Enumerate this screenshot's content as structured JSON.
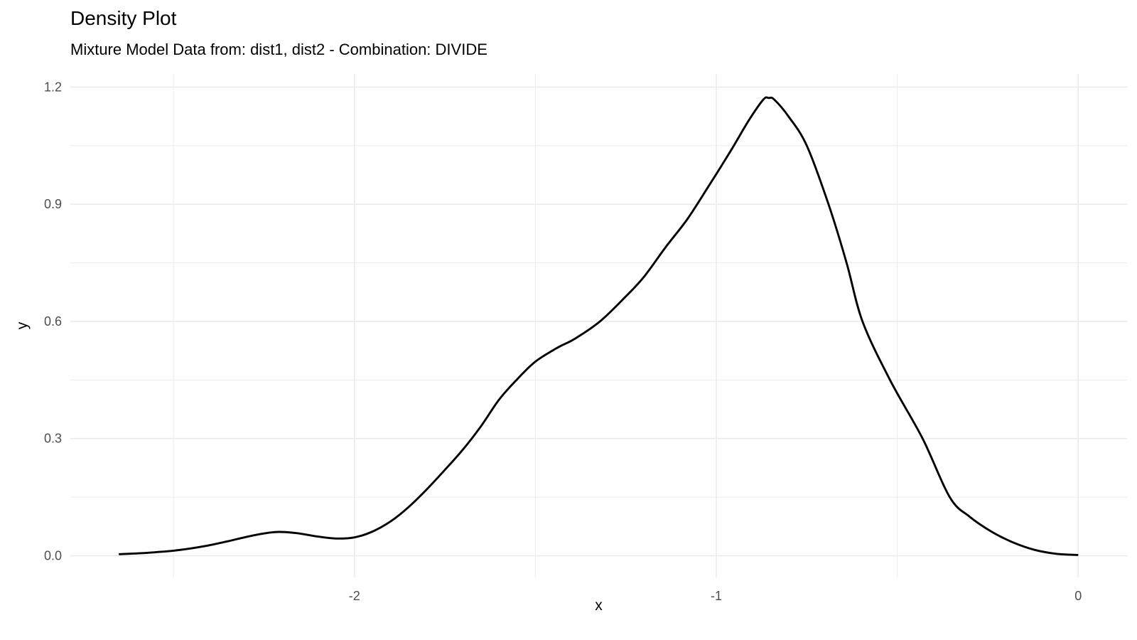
{
  "chart_data": {
    "type": "line",
    "title": "Density Plot",
    "subtitle": "Mixture Model Data from: dist1, dist2 - Combination: DIVIDE",
    "xlabel": "x",
    "ylabel": "y",
    "xlim": [
      -2.785,
      0.135
    ],
    "ylim": [
      -0.0555,
      1.2335
    ],
    "x_ticks_major": [
      -2,
      -1,
      0
    ],
    "x_tick_labels": [
      "-2",
      "-1",
      "0"
    ],
    "x_ticks_minor": [
      -2.5,
      -1.5,
      -0.5
    ],
    "y_ticks_major": [
      0,
      0.3,
      0.6,
      0.9,
      1.2
    ],
    "y_tick_labels": [
      "0.0",
      "0.3",
      "0.6",
      "0.9",
      "1.2"
    ],
    "y_ticks_minor": [
      0.15,
      0.45,
      0.75,
      1.05
    ],
    "grid": true,
    "legend": "none",
    "line_color": "#000000",
    "grid_color": "#ebebeb",
    "axis_text_color": "#4d4d4d",
    "background_color": "#ffffff",
    "series": [
      {
        "x": [
          -2.651,
          -2.6,
          -2.55,
          -2.5,
          -2.45,
          -2.4,
          -2.35,
          -2.3,
          -2.25,
          -2.21,
          -2.16,
          -2.1,
          -2.05,
          -2.0,
          -1.95,
          -1.9,
          -1.85,
          -1.8,
          -1.75,
          -1.7,
          -1.65,
          -1.6,
          -1.55,
          -1.5,
          -1.44,
          -1.39,
          -1.32,
          -1.25,
          -1.2,
          -1.14,
          -1.08,
          -1.02,
          -0.96,
          -0.91,
          -0.87,
          -0.855,
          -0.84,
          -0.8,
          -0.75,
          -0.69,
          -0.64,
          -0.596,
          -0.52,
          -0.43,
          -0.355,
          -0.3,
          -0.24,
          -0.18,
          -0.12,
          -0.06,
          0
        ],
        "y": [
          0.004,
          0.006,
          0.009,
          0.013,
          0.019,
          0.027,
          0.037,
          0.048,
          0.057,
          0.061,
          0.058,
          0.049,
          0.044,
          0.047,
          0.062,
          0.088,
          0.125,
          0.17,
          0.22,
          0.272,
          0.332,
          0.4,
          0.452,
          0.497,
          0.532,
          0.556,
          0.601,
          0.664,
          0.714,
          0.79,
          0.862,
          0.948,
          1.037,
          1.115,
          1.168,
          1.172,
          1.168,
          1.124,
          1.05,
          0.9,
          0.75,
          0.6,
          0.45,
          0.3,
          0.15,
          0.1,
          0.062,
          0.034,
          0.015,
          0.005,
          0.002
        ]
      }
    ]
  }
}
